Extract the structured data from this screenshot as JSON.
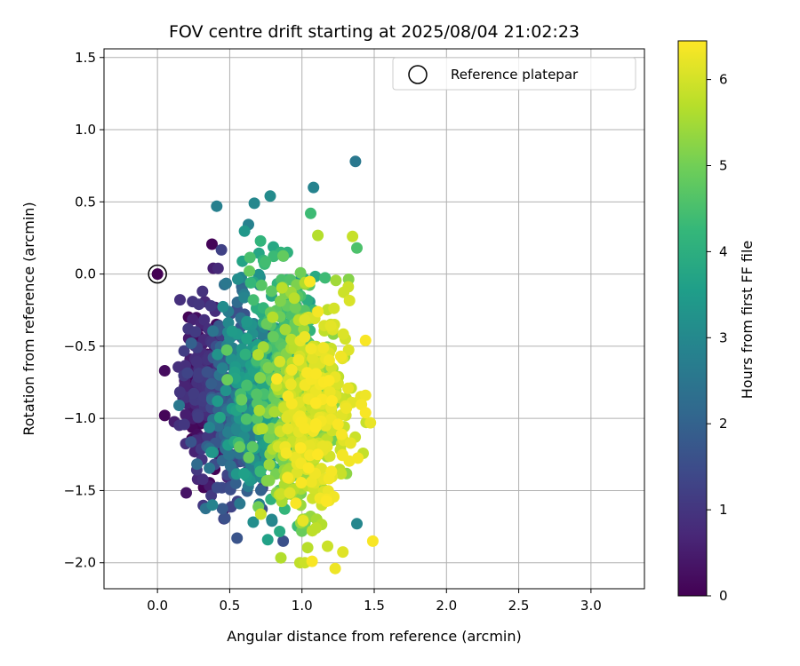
{
  "chart_data": {
    "type": "scatter",
    "title": "FOV centre drift starting at 2025/08/04 21:02:23",
    "xlabel": "Angular distance from reference (arcmin)",
    "ylabel": "Rotation from reference (arcmin)",
    "xlim": [
      -0.37,
      3.37
    ],
    "ylim": [
      -2.18,
      1.56
    ],
    "xticks": [
      0.0,
      0.5,
      1.0,
      1.5,
      2.0,
      2.5,
      3.0
    ],
    "xtick_labels": [
      "0.0",
      "0.5",
      "1.0",
      "1.5",
      "2.0",
      "2.5",
      "3.0"
    ],
    "yticks": [
      -2.0,
      -1.5,
      -1.0,
      -0.5,
      0.0,
      0.5,
      1.0,
      1.5
    ],
    "ytick_labels": [
      "−2.0",
      "−1.5",
      "−1.0",
      "−0.5",
      "0.0",
      "0.5",
      "1.0",
      "1.5"
    ],
    "grid": true,
    "legend": {
      "placement": "top-right",
      "entries": [
        "Reference platepar"
      ]
    },
    "reference_point": {
      "x": 0.0,
      "y": 0.0,
      "color": "#440154"
    },
    "colorbar": {
      "label": "Hours from first FF file",
      "colormap": "viridis",
      "range": [
        0,
        6.45
      ],
      "ticks": [
        0,
        1,
        2,
        3,
        4,
        5,
        6
      ],
      "tick_labels": [
        "0",
        "1",
        "2",
        "3",
        "4",
        "5",
        "6"
      ]
    },
    "colormap_stops": [
      "#440154",
      "#482878",
      "#3e4989",
      "#31688e",
      "#26828e",
      "#1f9e89",
      "#35b779",
      "#6ece58",
      "#b5de2b",
      "#fde725"
    ],
    "points_by_period": [
      {
        "hours": [
          0.0,
          1.2
        ],
        "center": [
          0.34,
          -0.75
        ],
        "spread": [
          0.09,
          0.33
        ],
        "count": 230
      },
      {
        "hours": [
          1.2,
          2.6
        ],
        "center": [
          0.55,
          -0.95
        ],
        "spread": [
          0.11,
          0.32
        ],
        "count": 200
      },
      {
        "hours": [
          2.6,
          3.8
        ],
        "center": [
          0.68,
          -0.8
        ],
        "spread": [
          0.12,
          0.38
        ],
        "count": 230
      },
      {
        "hours": [
          3.8,
          5.0
        ],
        "center": [
          0.87,
          -0.6
        ],
        "spread": [
          0.14,
          0.45
        ],
        "count": 230
      },
      {
        "hours": [
          5.0,
          5.8
        ],
        "center": [
          1.0,
          -0.95
        ],
        "spread": [
          0.13,
          0.38
        ],
        "count": 240
      },
      {
        "hours": [
          5.8,
          6.45
        ],
        "center": [
          1.1,
          -1.0
        ],
        "spread": [
          0.13,
          0.36
        ],
        "count": 260
      }
    ],
    "notable_points": [
      {
        "x": 1.37,
        "y": 0.78,
        "hours": 2.6
      },
      {
        "x": 0.41,
        "y": 0.47,
        "hours": 2.8
      },
      {
        "x": 0.78,
        "y": 0.54,
        "hours": 3.1
      },
      {
        "x": 1.08,
        "y": 0.6,
        "hours": 2.9
      },
      {
        "x": 0.67,
        "y": 0.49,
        "hours": 3.0
      },
      {
        "x": 1.06,
        "y": 0.42,
        "hours": 4.4
      },
      {
        "x": 1.35,
        "y": 0.26,
        "hours": 5.9
      },
      {
        "x": 1.38,
        "y": 0.18,
        "hours": 4.6
      },
      {
        "x": 1.44,
        "y": -0.46,
        "hours": 6.4
      },
      {
        "x": 1.44,
        "y": -0.84,
        "hours": 6.3
      },
      {
        "x": 1.44,
        "y": -0.96,
        "hours": 6.4
      },
      {
        "x": 1.49,
        "y": -1.85,
        "hours": 6.4
      },
      {
        "x": 1.23,
        "y": -2.04,
        "hours": 6.3
      },
      {
        "x": 1.07,
        "y": -1.99,
        "hours": 6.4
      },
      {
        "x": 1.38,
        "y": -1.73,
        "hours": 3.0
      },
      {
        "x": 0.87,
        "y": -1.85,
        "hours": 1.6
      },
      {
        "x": 0.38,
        "y": -1.6,
        "hours": 2.9
      },
      {
        "x": 0.29,
        "y": -1.21,
        "hours": 0.2
      },
      {
        "x": 0.05,
        "y": -0.98,
        "hours": 0.1
      },
      {
        "x": 0.05,
        "y": -0.67,
        "hours": 0.2
      },
      {
        "x": 0.15,
        "y": -0.91,
        "hours": 2.6
      },
      {
        "x": 0.46,
        "y": -1.63,
        "hours": 0.3
      },
      {
        "x": 0.57,
        "y": -1.59,
        "hours": 2.6
      }
    ]
  }
}
